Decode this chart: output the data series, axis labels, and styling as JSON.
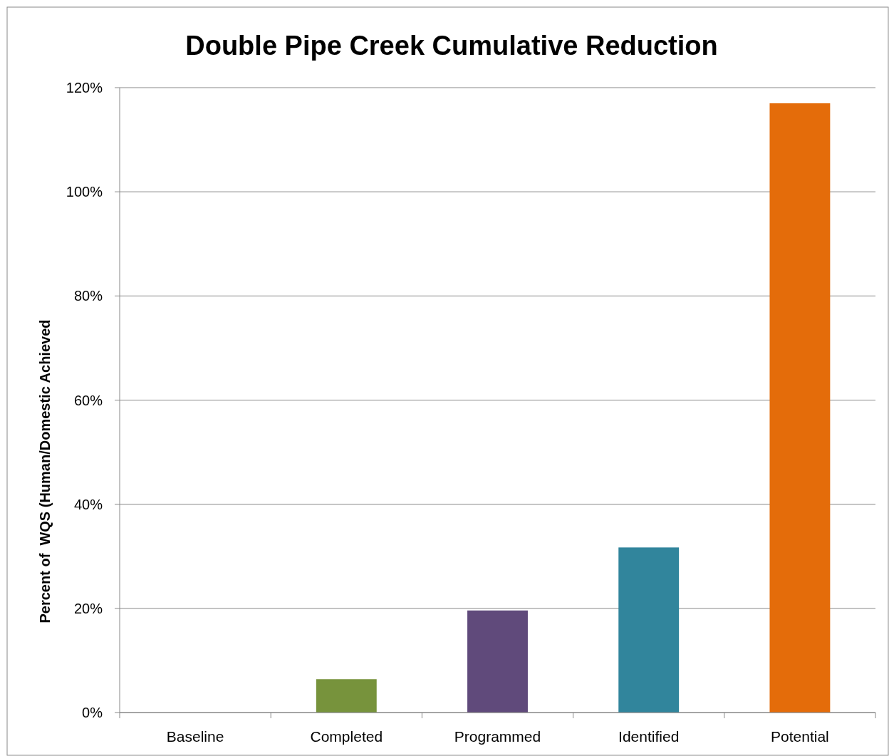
{
  "chart_data": {
    "type": "bar",
    "title": "Double Pipe Creek Cumulative Reduction",
    "ylabel": "Percent of  WQS (Human/Domestic Achieved",
    "categories": [
      "Baseline",
      "Completed",
      "Programmed",
      "Identified",
      "Potential"
    ],
    "values": [
      0,
      6.4,
      19.6,
      31.7,
      117.0
    ],
    "colors": [
      "#77933c",
      "#77933c",
      "#604a7b",
      "#31859c",
      "#e46c0a"
    ],
    "ylim": [
      0,
      120
    ],
    "yticks": [
      {
        "value": 0,
        "label": "0%"
      },
      {
        "value": 20,
        "label": "20%"
      },
      {
        "value": 40,
        "label": "40%"
      },
      {
        "value": 60,
        "label": "60%"
      },
      {
        "value": 80,
        "label": "80%"
      },
      {
        "value": 100,
        "label": "100%"
      },
      {
        "value": 120,
        "label": "120%"
      }
    ],
    "grid": "y"
  }
}
